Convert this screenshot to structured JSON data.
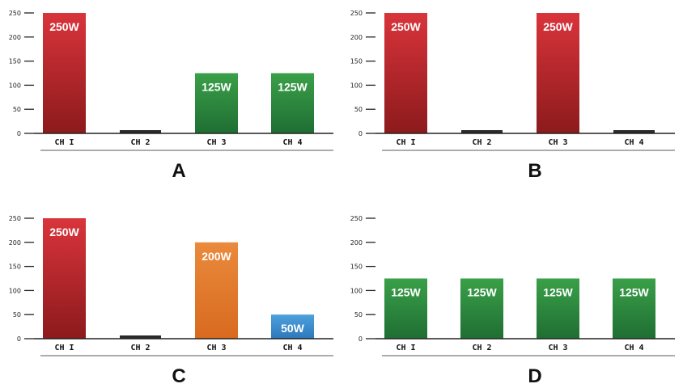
{
  "chart_data": [
    {
      "type": "bar",
      "title": "A",
      "categories": [
        "CH I",
        "CH 2",
        "CH 3",
        "CH 4"
      ],
      "values": [
        250,
        0,
        125,
        125
      ],
      "data_labels": [
        "250W",
        "",
        "125W",
        "125W"
      ],
      "colors": [
        "red",
        "black",
        "green",
        "green"
      ],
      "ylim": [
        0,
        250
      ],
      "yticks": [
        "0",
        "50",
        "100",
        "150",
        "200",
        "250"
      ],
      "grid": false
    },
    {
      "type": "bar",
      "title": "B",
      "categories": [
        "CH I",
        "CH 2",
        "CH 3",
        "CH 4"
      ],
      "values": [
        250,
        0,
        250,
        0
      ],
      "data_labels": [
        "250W",
        "",
        "250W",
        ""
      ],
      "colors": [
        "red",
        "black",
        "red",
        "black"
      ],
      "ylim": [
        0,
        250
      ],
      "yticks": [
        "0",
        "50",
        "100",
        "150",
        "200",
        "250"
      ],
      "grid": false
    },
    {
      "type": "bar",
      "title": "C",
      "categories": [
        "CH I",
        "CH 2",
        "CH 3",
        "CH 4"
      ],
      "values": [
        250,
        0,
        200,
        50
      ],
      "data_labels": [
        "250W",
        "",
        "200W",
        "50W"
      ],
      "colors": [
        "red",
        "black",
        "orange",
        "blue"
      ],
      "ylim": [
        0,
        250
      ],
      "yticks": [
        "0",
        "50",
        "100",
        "150",
        "200",
        "250"
      ],
      "grid": false
    },
    {
      "type": "bar",
      "title": "D",
      "categories": [
        "CH I",
        "CH 2",
        "CH 3",
        "CH 4"
      ],
      "values": [
        125,
        125,
        125,
        125
      ],
      "data_labels": [
        "125W",
        "125W",
        "125W",
        "125W"
      ],
      "colors": [
        "green",
        "green",
        "green",
        "green"
      ],
      "ylim": [
        0,
        250
      ],
      "yticks": [
        "0",
        "50",
        "100",
        "150",
        "200",
        "250"
      ],
      "grid": false
    }
  ],
  "palette": {
    "red": [
      "#d9343b",
      "#8c1a1c"
    ],
    "green": [
      "#3aa048",
      "#1f6e33"
    ],
    "orange": [
      "#ea8a3c",
      "#d86a1e"
    ],
    "blue": [
      "#4ca1dc",
      "#2e78bb"
    ],
    "black": [
      "#2a2a2a",
      "#2a2a2a"
    ],
    "axis": "#222222"
  }
}
